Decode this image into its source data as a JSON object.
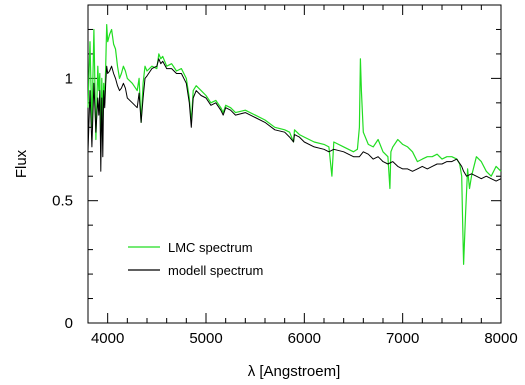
{
  "chart_data": {
    "type": "line",
    "xlabel": "λ  [Angstroem]",
    "ylabel": "Flux",
    "xlim": [
      3800,
      8000
    ],
    "ylim": [
      0,
      1.3
    ],
    "x_ticks": [
      4000,
      5000,
      6000,
      7000,
      8000
    ],
    "y_ticks": [
      0,
      0.5,
      1
    ],
    "y_tick_labels": [
      "0",
      "0.5",
      "1"
    ],
    "x_minor_step": 200,
    "y_minor_step": 0.1,
    "grid": false,
    "legend_position": "lower-left",
    "series": [
      {
        "name": "LMC spectrum",
        "color": "#22dd22",
        "x": [
          3800,
          3820,
          3840,
          3860,
          3880,
          3900,
          3910,
          3920,
          3930,
          3940,
          3950,
          3960,
          3970,
          3980,
          3990,
          4000,
          4020,
          4040,
          4060,
          4080,
          4100,
          4120,
          4140,
          4160,
          4180,
          4200,
          4250,
          4300,
          4320,
          4340,
          4360,
          4380,
          4400,
          4450,
          4500,
          4520,
          4540,
          4560,
          4600,
          4650,
          4700,
          4750,
          4800,
          4830,
          4850,
          4870,
          4900,
          4950,
          5000,
          5050,
          5100,
          5150,
          5175,
          5200,
          5250,
          5300,
          5400,
          5500,
          5600,
          5700,
          5800,
          5850,
          5890,
          5900,
          5950,
          6000,
          6100,
          6200,
          6250,
          6280,
          6300,
          6400,
          6500,
          6540,
          6560,
          6570,
          6580,
          6600,
          6650,
          6700,
          6750,
          6800,
          6850,
          6870,
          6880,
          6900,
          6950,
          7000,
          7050,
          7100,
          7150,
          7200,
          7250,
          7300,
          7350,
          7400,
          7450,
          7500,
          7550,
          7580,
          7600,
          7610,
          7620,
          7640,
          7660,
          7680,
          7700,
          7750,
          7800,
          7850,
          7900,
          7950,
          8000
        ],
        "y": [
          0.88,
          1.15,
          0.8,
          1.2,
          0.75,
          1.05,
          0.95,
          1.02,
          0.7,
          1.0,
          0.82,
          0.98,
          0.9,
          1.05,
          1.22,
          1.15,
          1.18,
          1.2,
          1.14,
          1.12,
          1.05,
          1.0,
          1.02,
          1.05,
          1.03,
          1.0,
          0.98,
          0.95,
          1.0,
          0.82,
          0.98,
          1.05,
          1.03,
          1.05,
          1.04,
          1.1,
          1.08,
          1.09,
          1.05,
          1.06,
          1.03,
          1.04,
          1.0,
          0.92,
          0.82,
          0.95,
          0.97,
          0.95,
          0.93,
          0.9,
          0.91,
          0.88,
          0.86,
          0.89,
          0.88,
          0.86,
          0.87,
          0.85,
          0.83,
          0.8,
          0.79,
          0.78,
          0.74,
          0.79,
          0.77,
          0.76,
          0.74,
          0.73,
          0.72,
          0.6,
          0.74,
          0.72,
          0.7,
          0.71,
          0.8,
          1.08,
          0.95,
          0.78,
          0.73,
          0.72,
          0.75,
          0.7,
          0.68,
          0.55,
          0.7,
          0.72,
          0.75,
          0.73,
          0.72,
          0.7,
          0.66,
          0.67,
          0.68,
          0.68,
          0.69,
          0.67,
          0.68,
          0.68,
          0.67,
          0.65,
          0.6,
          0.42,
          0.24,
          0.45,
          0.63,
          0.55,
          0.6,
          0.68,
          0.66,
          0.62,
          0.6,
          0.64,
          0.62
        ]
      },
      {
        "name": "modell spectrum",
        "color": "#000000",
        "x": [
          3800,
          3820,
          3840,
          3860,
          3880,
          3900,
          3910,
          3920,
          3930,
          3940,
          3950,
          3960,
          3970,
          3980,
          3990,
          4000,
          4020,
          4040,
          4060,
          4080,
          4100,
          4120,
          4140,
          4160,
          4180,
          4200,
          4250,
          4300,
          4320,
          4340,
          4360,
          4380,
          4400,
          4450,
          4500,
          4520,
          4540,
          4560,
          4600,
          4650,
          4700,
          4750,
          4800,
          4830,
          4850,
          4870,
          4900,
          4950,
          5000,
          5050,
          5100,
          5150,
          5175,
          5200,
          5250,
          5300,
          5400,
          5500,
          5600,
          5700,
          5800,
          5850,
          5890,
          5900,
          5950,
          6000,
          6100,
          6200,
          6250,
          6300,
          6400,
          6500,
          6560,
          6600,
          6650,
          6700,
          6750,
          6800,
          6850,
          6900,
          6950,
          7000,
          7050,
          7100,
          7150,
          7200,
          7250,
          7300,
          7350,
          7400,
          7450,
          7500,
          7550,
          7600,
          7620,
          7650,
          7700,
          7750,
          7800,
          7850,
          7900,
          7950,
          8000
        ],
        "y": [
          0.7,
          0.95,
          0.72,
          0.98,
          0.78,
          0.92,
          0.85,
          0.95,
          0.62,
          0.92,
          0.68,
          0.95,
          0.88,
          0.98,
          1.05,
          1.02,
          1.03,
          1.05,
          1.02,
          1.0,
          0.97,
          0.95,
          0.96,
          0.98,
          0.96,
          0.92,
          0.9,
          0.88,
          0.94,
          0.82,
          0.92,
          1.0,
          1.01,
          1.04,
          1.05,
          1.08,
          1.06,
          1.07,
          1.04,
          1.04,
          1.02,
          1.02,
          0.98,
          0.9,
          0.8,
          0.92,
          0.95,
          0.93,
          0.92,
          0.89,
          0.9,
          0.87,
          0.85,
          0.88,
          0.87,
          0.85,
          0.86,
          0.84,
          0.82,
          0.79,
          0.78,
          0.76,
          0.74,
          0.77,
          0.76,
          0.74,
          0.72,
          0.71,
          0.7,
          0.71,
          0.7,
          0.68,
          0.68,
          0.7,
          0.69,
          0.67,
          0.68,
          0.66,
          0.65,
          0.66,
          0.64,
          0.63,
          0.63,
          0.62,
          0.63,
          0.64,
          0.63,
          0.64,
          0.65,
          0.65,
          0.66,
          0.66,
          0.67,
          0.64,
          0.62,
          0.6,
          0.61,
          0.6,
          0.59,
          0.6,
          0.59,
          0.58,
          0.59
        ]
      }
    ]
  }
}
